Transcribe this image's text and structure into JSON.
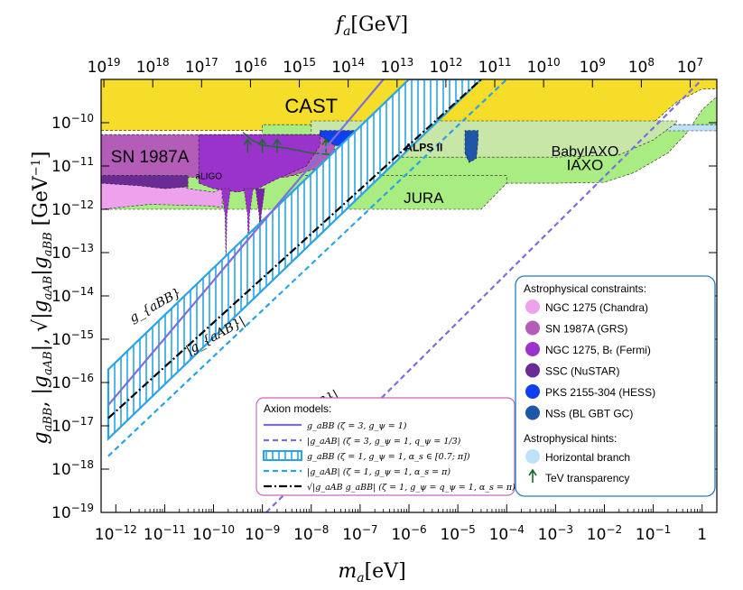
{
  "chart_data": {
    "type": "line",
    "title": "",
    "xlabel": "m_a [eV]",
    "ylabel": "g_{aBB}, |g_{aAB}|, √|g_{aAB} g_{aBB}| [GeV^{-1}]",
    "x_top_label": "f_a [GeV]",
    "x_scale": "log",
    "y_scale": "log",
    "xlim": [
      5e-13,
      2
    ],
    "ylim": [
      1e-19,
      1e-09
    ],
    "x_ticks": [
      {
        "v": 1e-12,
        "m": "10",
        "e": "−12"
      },
      {
        "v": 1e-11,
        "m": "10",
        "e": "−11"
      },
      {
        "v": 1e-10,
        "m": "10",
        "e": "−10"
      },
      {
        "v": 1e-09,
        "m": "10",
        "e": "−9"
      },
      {
        "v": 1e-08,
        "m": "10",
        "e": "−8"
      },
      {
        "v": 1e-07,
        "m": "10",
        "e": "−7"
      },
      {
        "v": 1e-06,
        "m": "10",
        "e": "−6"
      },
      {
        "v": 1e-05,
        "m": "10",
        "e": "−5"
      },
      {
        "v": 0.0001,
        "m": "10",
        "e": "−4"
      },
      {
        "v": 0.001,
        "m": "10",
        "e": "−3"
      },
      {
        "v": 0.01,
        "m": "10",
        "e": "−2"
      },
      {
        "v": 0.1,
        "m": "10",
        "e": "−1"
      },
      {
        "v": 1,
        "m": "1",
        "e": ""
      }
    ],
    "y_ticks": [
      {
        "v": 1e-10,
        "m": "10",
        "e": "−10"
      },
      {
        "v": 1e-11,
        "m": "10",
        "e": "−11"
      },
      {
        "v": 1e-12,
        "m": "10",
        "e": "−12"
      },
      {
        "v": 1e-13,
        "m": "10",
        "e": "−13"
      },
      {
        "v": 1e-14,
        "m": "10",
        "e": "−14"
      },
      {
        "v": 1e-15,
        "m": "10",
        "e": "−15"
      },
      {
        "v": 1e-16,
        "m": "10",
        "e": "−16"
      },
      {
        "v": 1e-17,
        "m": "10",
        "e": "−17"
      },
      {
        "v": 1e-18,
        "m": "10",
        "e": "−18"
      },
      {
        "v": 1e-19,
        "m": "10",
        "e": "−19"
      }
    ],
    "top_ticks": [
      {
        "v": 1e+19,
        "e": "19"
      },
      {
        "v": 1e+18,
        "e": "18"
      },
      {
        "v": 1e+17,
        "e": "17"
      },
      {
        "v": 1e+16,
        "e": "16"
      },
      {
        "v": 1000000000000000.0,
        "e": "15"
      },
      {
        "v": 100000000000000.0,
        "e": "14"
      },
      {
        "v": 10000000000000.0,
        "e": "13"
      },
      {
        "v": 1000000000000.0,
        "e": "12"
      },
      {
        "v": 100000000000.0,
        "e": "11"
      },
      {
        "v": 10000000000.0,
        "e": "10"
      },
      {
        "v": 1000000000.0,
        "e": "9"
      },
      {
        "v": 100000000.0,
        "e": "8"
      },
      {
        "v": 10000000.0,
        "e": "7"
      }
    ],
    "fa_ma_relation_GeV_eV": 5700000.0,
    "regions": [
      {
        "name": "CAST",
        "color": "#f5dd2a",
        "opacity": 1,
        "pts": [
          [
            5e-13,
            6.6e-11
          ],
          [
            0.02,
            6.6e-11
          ],
          [
            0.1,
            1e-10
          ],
          [
            0.3,
            3e-10
          ],
          [
            1,
            6e-10
          ],
          [
            2,
            6e-10
          ],
          [
            2,
            1e-09
          ],
          [
            5e-13,
            1e-09
          ]
        ]
      },
      {
        "name": "IAXO",
        "color": "#a8ec82",
        "opacity": 1,
        "pts": [
          [
            1e-09,
            4e-12
          ],
          [
            0.001,
            4e-12
          ],
          [
            0.01,
            4.2e-12
          ],
          [
            0.04,
            7e-12
          ],
          [
            0.2,
            2e-11
          ],
          [
            0.5,
            6e-11
          ],
          [
            1,
            2e-10
          ],
          [
            2,
            4e-10
          ],
          [
            2,
            9e-11
          ],
          [
            1e-09,
            9e-11
          ]
        ]
      },
      {
        "name": "JURA",
        "color": "#a8ec82",
        "opacity": 1,
        "pts": [
          [
            5e-13,
            1e-12
          ],
          [
            3e-05,
            1e-12
          ],
          [
            0.0001,
            4e-12
          ],
          [
            0.0001,
            6e-12
          ],
          [
            5e-13,
            6e-12
          ]
        ]
      },
      {
        "name": "Horizontal branch",
        "color": "#bfe2fb",
        "opacity": 1,
        "pts": [
          [
            0.001,
            6.5e-11
          ],
          [
            2,
            6.5e-11
          ],
          [
            2,
            9e-11
          ],
          [
            0.001,
            9e-11
          ]
        ]
      },
      {
        "name": "BabyIAXO",
        "color": "#c8e6a8",
        "opacity": 1,
        "pts": [
          [
            1e-08,
            1.6e-11
          ],
          [
            0.001,
            1.6e-11
          ],
          [
            0.02,
            1.8e-11
          ],
          [
            0.1,
            4e-11
          ],
          [
            0.3,
            1e-10
          ],
          [
            0.3,
            1.1e-10
          ],
          [
            1e-08,
            1.1e-10
          ]
        ]
      },
      {
        "name": "SN 1987A (GRS)",
        "color": "#b35cb8",
        "opacity": 1,
        "pts": [
          [
            5e-13,
            5.5e-12
          ],
          [
            3e-09,
            5.5e-12
          ],
          [
            2e-08,
            1e-11
          ],
          [
            3e-08,
            2e-11
          ],
          [
            3e-08,
            5.3e-11
          ],
          [
            5e-13,
            5.3e-11
          ]
        ]
      },
      {
        "name": "NGC 1275 (Chandra)",
        "color": "#eea2ee",
        "opacity": 1,
        "pts": [
          [
            5e-13,
            1e-12
          ],
          [
            5e-13,
            6e-12
          ],
          [
            1e-11,
            6e-12
          ],
          [
            3e-11,
            3e-12
          ],
          [
            1e-10,
            2.5e-12
          ],
          [
            1.5e-10,
            3e-12
          ],
          [
            1.5e-10,
            1.1e-12
          ],
          [
            8e-11,
            1.2e-12
          ],
          [
            5e-12,
            1.3e-12
          ]
        ]
      },
      {
        "name": "NGC 1275, Bt (Fermi)",
        "color": "#9a33cc",
        "opacity": 1,
        "pts": [
          [
            5e-11,
            4e-12
          ],
          [
            1e-10,
            3e-12
          ],
          [
            3e-10,
            2.5e-12
          ],
          [
            8e-10,
            3e-12
          ],
          [
            2e-09,
            5e-12
          ],
          [
            8e-09,
            1e-11
          ],
          [
            1.5e-08,
            3e-11
          ],
          [
            1.5e-08,
            5.3e-11
          ],
          [
            5e-11,
            5.3e-11
          ]
        ]
      },
      {
        "name": "SSC (NuSTAR)",
        "color": "#6a2c94",
        "opacity": 1,
        "pts": [
          [
            5e-13,
            4e-12
          ],
          [
            3e-12,
            3.5e-12
          ],
          [
            1e-11,
            3e-12
          ],
          [
            3e-11,
            3.3e-12
          ],
          [
            3e-11,
            6e-12
          ],
          [
            5e-13,
            6e-12
          ]
        ]
      },
      {
        "name": "PKS 2155-304 (HESS)",
        "color": "#1040ee",
        "opacity": 1,
        "pts": [
          [
            1.5e-08,
            5e-11
          ],
          [
            3e-08,
            3e-11
          ],
          [
            5e-08,
            2.8e-11
          ],
          [
            9e-08,
            3.5e-11
          ],
          [
            1.2e-07,
            5e-11
          ],
          [
            1e-07,
            6.6e-11
          ],
          [
            1.5e-08,
            6.6e-11
          ]
        ]
      },
      {
        "name": "NSs (BL GBT GC)",
        "color": "#1f57a8",
        "opacity": 1,
        "pts": [
          [
            1.4e-05,
            2e-11
          ],
          [
            1.7e-05,
            1.2e-11
          ],
          [
            2.4e-05,
            1.5e-11
          ],
          [
            2.6e-05,
            4e-11
          ],
          [
            2.6e-05,
            6.6e-11
          ],
          [
            1.4e-05,
            6.6e-11
          ]
        ]
      }
    ],
    "dips": [
      {
        "x": 1.8e-10,
        "top": 3e-12,
        "bottom": 5e-14,
        "color": "#9a33cc"
      },
      {
        "x": 5.2e-10,
        "top": 3e-12,
        "bottom": 5e-14,
        "color": "#9a33cc"
      },
      {
        "x": 9e-10,
        "top": 3e-12,
        "bottom": 3e-14,
        "color": "#7a22aa"
      }
    ],
    "tev_arrows_x": [
      5e-10,
      1e-09,
      2e-09,
      2e-08,
      1e-07
    ],
    "series": [
      {
        "name": "g_aBB (ζ=3, g_ψ=1)",
        "style": "solid",
        "color": "#7b6fdc",
        "x": [
          7e-13,
          3e-07
        ],
        "y": [
          3e-17,
          1e-09
        ]
      },
      {
        "name": "|g_aAB| (ζ=3, g_ψ=1, q_ψ=1/3)",
        "style": "dashed",
        "color": "#7b6fdc",
        "x": [
          1.2e-09,
          1
        ],
        "y": [
          1e-19,
          1e-09
        ]
      },
      {
        "name": "|g_aAB| (ζ=1, g_ψ=1, α_s=π)",
        "style": "dashed",
        "color": "#29a3e6",
        "x": [
          7e-13,
          0.0001
        ],
        "y": [
          2e-18,
          1e-09
        ]
      },
      {
        "name": "√|g_aAB g_aBB| (ζ=1, g_ψ=q_ψ=1, α_s=π)",
        "style": "dashdot",
        "color": "#000000",
        "x": [
          7e-13,
          3e-05
        ],
        "y": [
          1.5e-17,
          1e-09
        ]
      }
    ],
    "band": {
      "name": "g_aBB (ζ=1, g_ψ=1, α_s ∈ [0.7; π])",
      "color": "#29a3e6",
      "lower": {
        "x": [
          7e-13,
          3e-05
        ],
        "y": [
          5e-18,
          1e-09
        ]
      },
      "upper": {
        "x": [
          7e-13,
          1e-06
        ],
        "y": [
          2e-16,
          1e-09
        ]
      }
    },
    "annotations": {
      "cast": "CAST",
      "sn": "SN 1987A",
      "babyiaxo": "BabyIAXO",
      "iaxo": "IAXO",
      "jura": "JURA",
      "alps": "ALPS II",
      "aligo": "aLIGO",
      "g_abb": "g_{aBB}",
      "g_aab_1": "|g_{aAB}|",
      "g_aab_2": "|g_{aAB}|"
    },
    "legend_models": {
      "title": "Axion models:",
      "items": [
        {
          "style": "solid",
          "color": "#7b6fdc",
          "label": "g_aBB (ζ = 3, g_ψ = 1)"
        },
        {
          "style": "dashed",
          "color": "#7b6fdc",
          "label": "|g_aAB| (ζ = 3, g_ψ = 1, q_ψ = 1/3)"
        },
        {
          "style": "band",
          "color": "#29a3e6",
          "label": "g_aBB (ζ = 1, g_ψ = 1, α_s ∈ [0.7; π])"
        },
        {
          "style": "dashed",
          "color": "#29a3e6",
          "label": "|g_aAB| (ζ = 1, g_ψ = 1, α_s = π)"
        },
        {
          "style": "dashdot",
          "color": "#000000",
          "label": "√|g_aAB g_aBB| (ζ = 1, g_ψ = q_ψ = 1, α_s = π)"
        }
      ]
    },
    "legend_astro": {
      "title": "Astrophysical constraints:",
      "items": [
        {
          "color": "#eea2ee",
          "label": "NGC 1275 (Chandra)"
        },
        {
          "color": "#b35cb8",
          "label": "SN 1987A (GRS)"
        },
        {
          "color": "#9a33cc",
          "label": "NGC 1275, Bₜ (Fermi)"
        },
        {
          "color": "#6a2c94",
          "label": "SSC (NuSTAR)"
        },
        {
          "color": "#1040ee",
          "label": "PKS 2155-304 (HESS)"
        },
        {
          "color": "#1f57a8",
          "label": "NSs (BL GBT GC)"
        }
      ],
      "hints_title": "Astrophysical hints:",
      "hints": [
        {
          "type": "swatch",
          "color": "#bfe2fb",
          "label": "Horizontal branch"
        },
        {
          "type": "arrow",
          "color": "#1c6b2c",
          "label": "TeV transparency"
        }
      ]
    }
  }
}
